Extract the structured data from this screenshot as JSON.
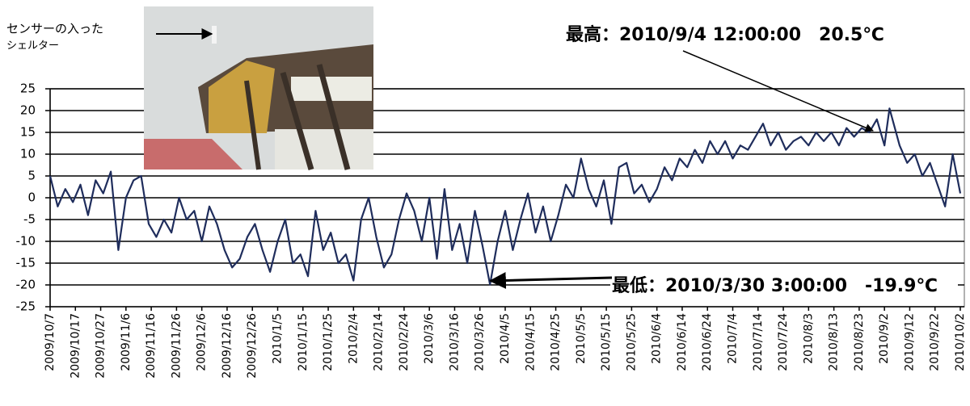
{
  "chart_data": {
    "type": "line",
    "x": [
      "2009/10/7",
      "2009/10/10",
      "2009/10/13",
      "2009/10/16",
      "2009/10/19",
      "2009/10/22",
      "2009/10/25",
      "2009/10/28",
      "2009/10/31",
      "2009/11/3",
      "2009/11/6",
      "2009/11/9",
      "2009/11/12",
      "2009/11/15",
      "2009/11/18",
      "2009/11/21",
      "2009/11/24",
      "2009/11/27",
      "2009/11/30",
      "2009/12/3",
      "2009/12/6",
      "2009/12/9",
      "2009/12/12",
      "2009/12/15",
      "2009/12/18",
      "2009/12/21",
      "2009/12/24",
      "2009/12/27",
      "2009/12/30",
      "2010/1/2",
      "2010/1/5",
      "2010/1/8",
      "2010/1/11",
      "2010/1/14",
      "2010/1/17",
      "2010/1/20",
      "2010/1/23",
      "2010/1/26",
      "2010/1/29",
      "2010/2/1",
      "2010/2/4",
      "2010/2/7",
      "2010/2/10",
      "2010/2/13",
      "2010/2/16",
      "2010/2/19",
      "2010/2/22",
      "2010/2/25",
      "2010/2/28",
      "2010/3/3",
      "2010/3/6",
      "2010/3/9",
      "2010/3/12",
      "2010/3/15",
      "2010/3/18",
      "2010/3/21",
      "2010/3/24",
      "2010/3/27",
      "2010/3/30",
      "2010/4/2",
      "2010/4/5",
      "2010/4/8",
      "2010/4/11",
      "2010/4/14",
      "2010/4/17",
      "2010/4/20",
      "2010/4/23",
      "2010/4/26",
      "2010/4/29",
      "2010/5/2",
      "2010/5/5",
      "2010/5/8",
      "2010/5/11",
      "2010/5/14",
      "2010/5/17",
      "2010/5/20",
      "2010/5/23",
      "2010/5/26",
      "2010/5/29",
      "2010/6/1",
      "2010/6/4",
      "2010/6/7",
      "2010/6/10",
      "2010/6/13",
      "2010/6/16",
      "2010/6/19",
      "2010/6/22",
      "2010/6/25",
      "2010/6/28",
      "2010/7/1",
      "2010/7/4",
      "2010/7/7",
      "2010/7/10",
      "2010/7/13",
      "2010/7/16",
      "2010/7/19",
      "2010/7/22",
      "2010/7/25",
      "2010/7/28",
      "2010/7/31",
      "2010/8/3",
      "2010/8/6",
      "2010/8/9",
      "2010/8/12",
      "2010/8/15",
      "2010/8/18",
      "2010/8/21",
      "2010/8/24",
      "2010/8/27",
      "2010/8/30",
      "2010/9/2",
      "2010/9/4",
      "2010/9/8",
      "2010/9/11",
      "2010/9/14",
      "2010/9/17",
      "2010/9/20",
      "2010/9/23",
      "2010/9/26",
      "2010/9/29",
      "2010/10/2"
    ],
    "values": [
      5,
      -2,
      2,
      -1,
      3,
      -4,
      4,
      1,
      6,
      -12,
      0,
      4,
      5,
      -6,
      -9,
      -5,
      -8,
      0,
      -5,
      -3,
      -10,
      -2,
      -6,
      -12,
      -16,
      -14,
      -9,
      -6,
      -12,
      -17,
      -10,
      -5,
      -15,
      -13,
      -18,
      -3,
      -12,
      -8,
      -15,
      -13,
      -19,
      -5,
      0,
      -9,
      -16,
      -13,
      -5,
      1,
      -3,
      -10,
      0,
      -14,
      2,
      -12,
      -6,
      -15,
      -3,
      -11,
      -19.9,
      -10,
      -3,
      -12,
      -5,
      1,
      -8,
      -2,
      -10,
      -4,
      3,
      0,
      9,
      2,
      -2,
      4,
      -6,
      7,
      8,
      1,
      3,
      -1,
      2,
      7,
      4,
      9,
      7,
      11,
      8,
      13,
      10,
      13,
      9,
      12,
      11,
      14,
      17,
      12,
      15,
      11,
      13,
      14,
      12,
      15,
      13,
      15,
      12,
      16,
      14,
      16,
      15,
      18,
      12,
      20.5,
      12,
      8,
      10,
      5,
      8,
      3,
      -2,
      10,
      1
    ],
    "color": "#1f2d5c",
    "xlim": [
      "2009/10/7",
      "2010/10/2"
    ],
    "xticks": [
      "2009/10/7",
      "2009/10/17",
      "2009/10/27",
      "2009/11/6",
      "2009/11/16",
      "2009/11/26",
      "2009/12/6",
      "2009/12/16",
      "2009/12/26",
      "2010/1/5",
      "2010/1/15",
      "2010/1/25",
      "2010/2/4",
      "2010/2/14",
      "2010/2/24",
      "2010/3/6",
      "2010/3/16",
      "2010/3/26",
      "2010/4/5",
      "2010/4/15",
      "2010/4/25",
      "2010/5/5",
      "2010/5/15",
      "2010/5/25",
      "2010/6/4",
      "2010/6/14",
      "2010/6/24",
      "2010/7/4",
      "2010/7/14",
      "2010/7/24",
      "2010/8/3",
      "2010/8/13",
      "2010/8/23",
      "2010/9/2",
      "2010/9/12",
      "2010/9/22",
      "2010/10/2"
    ],
    "ylim": [
      -25,
      25
    ],
    "yticks": [
      -25,
      -20,
      -15,
      -10,
      -5,
      0,
      5,
      10,
      15,
      20,
      25
    ],
    "grid": true,
    "annotations": [
      "最高：2010/9/4 12:00:00　20.5℃",
      "最低：2010/3/30 3:00:00　-19.9℃"
    ],
    "photo_caption": [
      "センサーの入った",
      "シェルター"
    ]
  }
}
